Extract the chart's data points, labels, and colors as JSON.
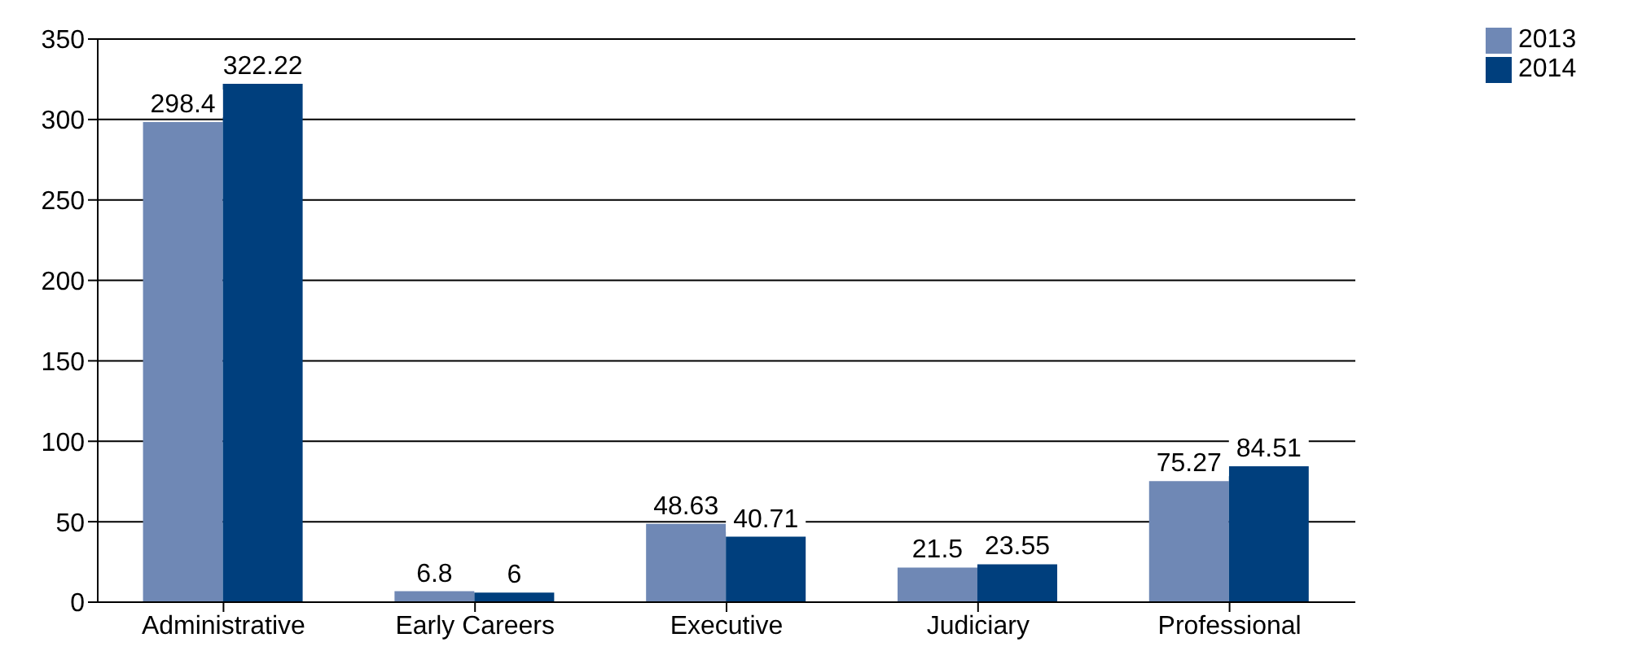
{
  "chart_data": {
    "type": "bar",
    "categories": [
      "Administrative",
      "Early Careers",
      "Executive",
      "Judiciary",
      "Professional"
    ],
    "series": [
      {
        "name": "2013",
        "color": "#6f88b5",
        "values": [
          298.4,
          6.8,
          48.63,
          21.5,
          75.27
        ]
      },
      {
        "name": "2014",
        "color": "#003f7d",
        "values": [
          322.22,
          6,
          40.71,
          23.55,
          84.51
        ]
      }
    ],
    "ylim": [
      0,
      350
    ],
    "yticks": [
      0,
      50,
      100,
      150,
      200,
      250,
      300,
      350
    ],
    "grid": "y",
    "legend": "top right",
    "data_labels": true
  }
}
